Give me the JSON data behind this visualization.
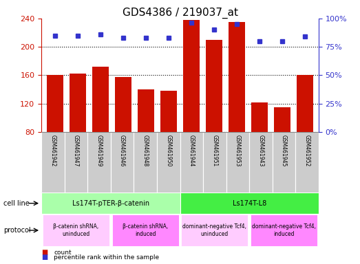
{
  "title": "GDS4386 / 219037_at",
  "samples": [
    "GSM461942",
    "GSM461947",
    "GSM461949",
    "GSM461946",
    "GSM461948",
    "GSM461950",
    "GSM461944",
    "GSM461951",
    "GSM461953",
    "GSM461943",
    "GSM461945",
    "GSM461952"
  ],
  "counts": [
    160,
    162,
    172,
    158,
    140,
    138,
    238,
    210,
    235,
    122,
    115,
    160
  ],
  "percentile_ranks": [
    85,
    85,
    86,
    83,
    83,
    83,
    96,
    90,
    95,
    80,
    80,
    84
  ],
  "ylim_left": [
    80,
    240
  ],
  "ylim_right": [
    0,
    100
  ],
  "yticks_left": [
    80,
    120,
    160,
    200,
    240
  ],
  "yticks_right": [
    0,
    25,
    50,
    75,
    100
  ],
  "bar_color": "#cc1100",
  "dot_color": "#3333cc",
  "cell_line_groups": [
    {
      "label": "Ls174T-pTER-β-catenin",
      "start": 0,
      "end": 6,
      "color": "#aaffaa"
    },
    {
      "label": "Ls174T-L8",
      "start": 6,
      "end": 12,
      "color": "#44ee44"
    }
  ],
  "protocol_groups": [
    {
      "label": "β-catenin shRNA,\nuninduced",
      "start": 0,
      "end": 3,
      "color": "#ffccff"
    },
    {
      "label": "β-catenin shRNA,\ninduced",
      "start": 3,
      "end": 6,
      "color": "#ff88ff"
    },
    {
      "label": "dominant-negative Tcf4,\nuninduced",
      "start": 6,
      "end": 9,
      "color": "#ffccff"
    },
    {
      "label": "dominant-negative Tcf4,\ninduced",
      "start": 9,
      "end": 12,
      "color": "#ff88ff"
    }
  ],
  "left_axis_color": "#cc1100",
  "right_axis_color": "#3333cc",
  "title_fontsize": 11,
  "tick_fontsize": 8,
  "sample_label_color": "#444444",
  "sample_bg_color": "#cccccc",
  "bottom_border_color": "#888888"
}
